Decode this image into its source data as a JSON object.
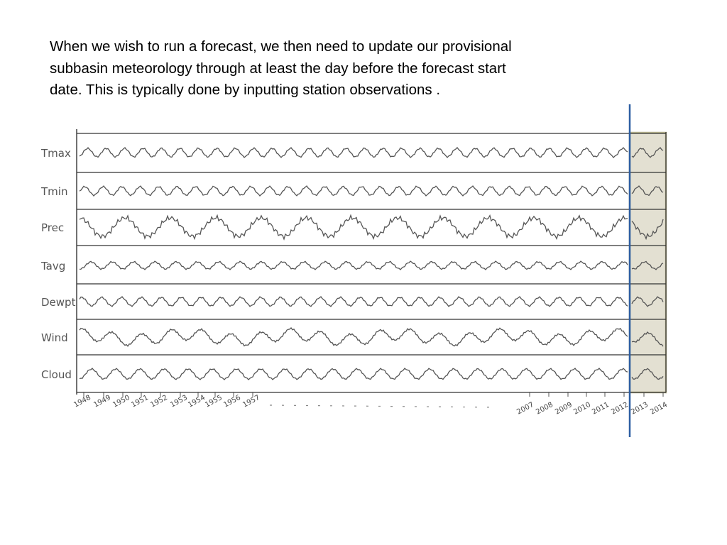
{
  "slide": {
    "text_lines": [
      "When we wish to run a forecast, we then need to update our provisional",
      "subbasin meteorology through at least the day before the forecast start",
      "date.  This is typically done by inputting station observations ."
    ]
  },
  "sketch": {
    "variables": [
      "Tmax",
      "Tmin",
      "Prec",
      "Tavg",
      "Dewpt",
      "Wind",
      "Cloud"
    ],
    "years_early": [
      "1948",
      "1949",
      "1950",
      "1951",
      "1952",
      "1953",
      "1954",
      "1955",
      "1956",
      "1957"
    ],
    "years_late": [
      "2007",
      "2008",
      "2009",
      "2010",
      "2011",
      "2012",
      "2013",
      "2014"
    ],
    "colors": {
      "line": "#555555",
      "frame": "#333333",
      "forecast_start_marker": "#2e5fa3",
      "forecast_fill": "#e3e0d2",
      "forecast_border": "#b8b58f"
    }
  }
}
